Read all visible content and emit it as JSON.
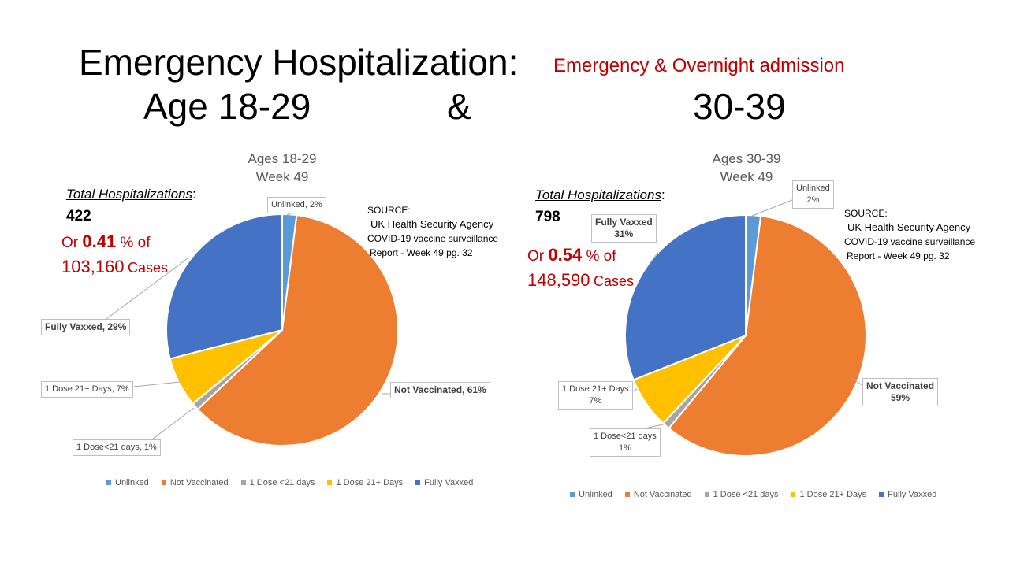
{
  "header": {
    "title": "Emergency Hospitalization:",
    "subtitle": "Emergency & Overnight admission",
    "age_left": "Age 18-29",
    "amp": "&",
    "age_right": "30-39"
  },
  "colors": {
    "Unlinked": "#5b9bd5",
    "Not Vaccinated": "#ed7d31",
    "1 Dose <21 days": "#a5a5a5",
    "1 Dose 21+ Days": "#ffc000",
    "Fully Vaxxed": "#4472c4"
  },
  "left": {
    "total_label": "Total Hospitalizations",
    "total_colon": ":",
    "total_value": "422",
    "pct_prefix": "Or",
    "pct_value": "0.41",
    "pct_suffix": "% of",
    "cases_value": "103,160",
    "cases_label": "Cases",
    "source": {
      "heading": "SOURCE:",
      "org": "UK Health Security Agency",
      "line2": "COVID-19 vaccine surveillance",
      "line3": "Report - Week 49   pg. 32"
    },
    "labels": {
      "unlinked": "Unlinked, 2%",
      "not_vaccinated": "Not Vaccinated, 61%",
      "dose_lt21": "1 Dose<21 days, 1%",
      "dose_21plus": "1 Dose 21+ Days, 7%",
      "fully": "Fully Vaxxed, 29%"
    }
  },
  "right": {
    "total_label": "Total Hospitalizations",
    "total_colon": ":",
    "total_value": "798",
    "pct_prefix": "Or",
    "pct_value": "0.54",
    "pct_suffix": "% of",
    "cases_value": "148,590",
    "cases_label": "Cases",
    "source": {
      "heading": "SOURCE:",
      "org": "UK Health Security Agency",
      "line2": "COVID-19 vaccine surveillance",
      "line3": "Report - Week 49   pg. 32"
    },
    "labels": {
      "unlinked_name": "Unlinked",
      "unlinked_pct": "2%",
      "not_vaccinated_name": "Not Vaccinated",
      "not_vaccinated_pct": "59%",
      "dose_lt21_name": "1 Dose<21 days",
      "dose_lt21_pct": "1%",
      "dose_21plus_name": "1 Dose 21+ Days",
      "dose_21plus_pct": "7%",
      "fully_name": "Fully Vaxxed",
      "fully_pct": "31%"
    }
  },
  "chart_data": [
    {
      "type": "pie",
      "title": "Ages 18-29",
      "subtitle": "Week 49",
      "categories": [
        "Unlinked",
        "Not Vaccinated",
        "1 Dose <21 days",
        "1 Dose 21+ Days",
        "Fully Vaxxed"
      ],
      "values": [
        2,
        61,
        1,
        7,
        29
      ],
      "legend": [
        "Unlinked",
        "Not Vaccinated",
        "1 Dose <21 days",
        "1 Dose 21+ Days",
        "Fully Vaxxed"
      ],
      "legend_position": "bottom"
    },
    {
      "type": "pie",
      "title": "Ages 30-39",
      "subtitle": "Week 49",
      "categories": [
        "Unlinked",
        "Not Vaccinated",
        "1 Dose <21 days",
        "1 Dose 21+ Days",
        "Fully Vaxxed"
      ],
      "values": [
        2,
        59,
        1,
        7,
        31
      ],
      "legend": [
        "Unlinked",
        "Not Vaccinated",
        "1 Dose <21 days",
        "1 Dose 21+ Days",
        "Fully Vaxxed"
      ],
      "legend_position": "bottom"
    }
  ]
}
